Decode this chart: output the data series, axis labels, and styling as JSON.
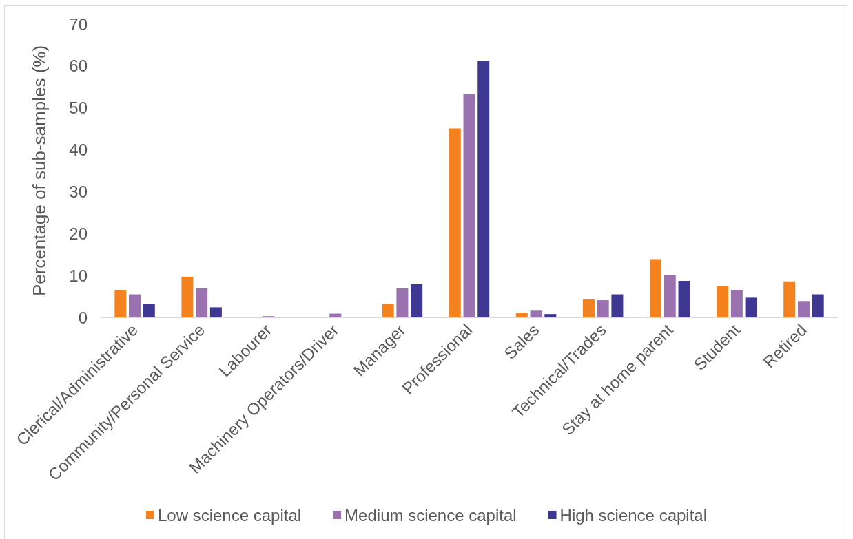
{
  "chart_data": {
    "type": "bar",
    "ylabel": "Percentage of sub-samples (%)",
    "categories": [
      "Clerical/Administrative",
      "Community/Personal Service",
      "Labourer",
      "Machinery Operators/Driver",
      "Manager",
      "Professional",
      "Sales",
      "Technical/Trades",
      "Stay at home parent",
      "Student",
      "Retired"
    ],
    "series": [
      {
        "name": "Low science capital",
        "color": "#f4821f",
        "values": [
          6.5,
          9.7,
          0,
          0,
          3.3,
          45.1,
          1.1,
          4.3,
          13.9,
          7.5,
          8.6
        ]
      },
      {
        "name": "Medium science capital",
        "color": "#9b72b0",
        "values": [
          5.5,
          6.9,
          0.3,
          0.9,
          6.9,
          53.3,
          1.6,
          4.1,
          10.2,
          6.4,
          3.9
        ]
      },
      {
        "name": "High science capital",
        "color": "#3e3893",
        "values": [
          3.2,
          2.4,
          0,
          0,
          7.9,
          61.2,
          0.8,
          5.5,
          8.7,
          4.7,
          5.5
        ]
      }
    ],
    "ylim": [
      0,
      70
    ],
    "yticks": [
      0,
      10,
      20,
      30,
      40,
      50,
      60,
      70
    ],
    "grid": false,
    "legend": "bottom"
  }
}
